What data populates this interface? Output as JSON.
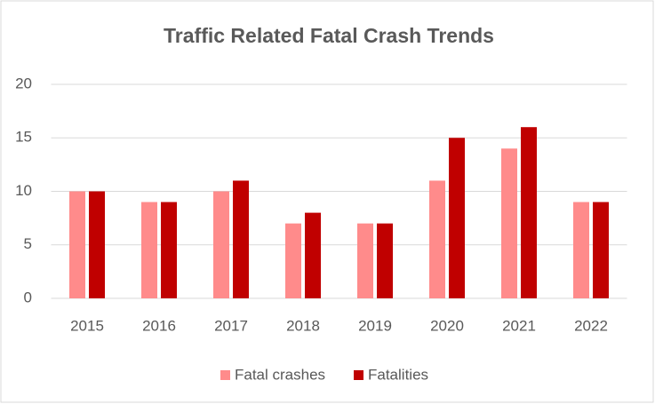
{
  "chart_data": {
    "type": "bar",
    "title": "Traffic Related Fatal Crash Trends",
    "categories": [
      "2015",
      "2016",
      "2017",
      "2018",
      "2019",
      "2020",
      "2021",
      "2022"
    ],
    "series": [
      {
        "name": "Fatal crashes",
        "color": "#ff8b8b",
        "values": [
          10,
          9,
          10,
          7,
          7,
          11,
          14,
          9
        ]
      },
      {
        "name": "Fatalities",
        "color": "#c00000",
        "values": [
          10,
          9,
          11,
          8,
          7,
          15,
          16,
          9
        ]
      }
    ],
    "ylim": [
      0,
      20
    ],
    "yticks": [
      0,
      5,
      10,
      15,
      20
    ],
    "grid": true,
    "legend": "bottom"
  }
}
